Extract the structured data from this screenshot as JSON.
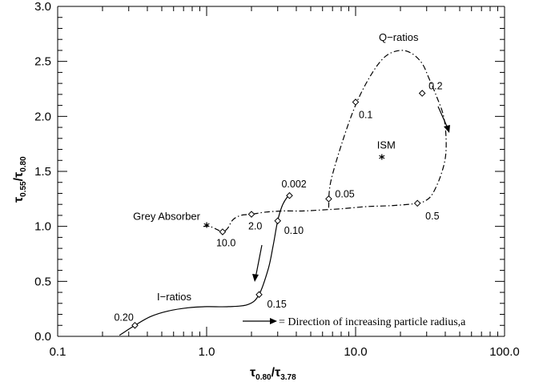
{
  "chart_data": {
    "type": "line",
    "x_scale": "log",
    "xlim": [
      0.1,
      100.0
    ],
    "ylim": [
      0.0,
      3.0
    ],
    "xticks": [
      "0.1",
      "1.0",
      "10.0",
      "100.0"
    ],
    "yticks": [
      "0.0",
      "0.5",
      "1.0",
      "1.5",
      "2.0",
      "2.5",
      "3.0"
    ],
    "xlabel": {
      "tau": "τ",
      "num": "0.80",
      "den": "3.78"
    },
    "ylabel": {
      "tau": "τ",
      "num": "0.55",
      "den": "0.80"
    },
    "series": [
      {
        "name": "I-ratios",
        "style": "solid",
        "x": [
          0.26,
          0.33,
          0.42,
          0.55,
          0.75,
          1.0,
          1.4,
          1.9,
          2.25,
          2.6,
          2.8,
          3.0,
          3.2,
          3.45,
          3.6
        ],
        "y": [
          0.01,
          0.1,
          0.18,
          0.23,
          0.26,
          0.27,
          0.27,
          0.29,
          0.38,
          0.62,
          0.83,
          1.05,
          1.18,
          1.26,
          1.28
        ],
        "markers": [
          {
            "x": 0.33,
            "y": 0.1,
            "label": "0.20"
          },
          {
            "x": 2.25,
            "y": 0.38,
            "label": "0.15"
          },
          {
            "x": 3.0,
            "y": 1.05,
            "label": "0.10"
          },
          {
            "x": 3.6,
            "y": 1.28,
            "label": "0.002"
          }
        ]
      },
      {
        "name": "Q-ratios",
        "style": "dash-dot",
        "x": [
          0.95,
          1.05,
          1.18,
          1.28,
          1.38,
          1.5,
          1.7,
          2.0,
          2.5,
          3.3,
          4.5,
          6.0,
          8.0,
          12.0,
          18.0,
          26.0,
          30.0,
          33.0,
          37.0,
          40.0,
          40.5,
          39.0,
          35.0,
          31.0,
          28.0,
          24.0,
          20.0,
          16.0,
          13.0,
          10.2,
          8.2,
          6.8,
          6.6
        ],
        "y": [
          1.0,
          1.0,
          0.97,
          0.95,
          0.98,
          1.06,
          1.1,
          1.11,
          1.13,
          1.14,
          1.14,
          1.15,
          1.16,
          1.18,
          1.19,
          1.21,
          1.24,
          1.3,
          1.45,
          1.62,
          1.8,
          2.0,
          2.18,
          2.35,
          2.48,
          2.57,
          2.6,
          2.55,
          2.4,
          2.13,
          1.78,
          1.4,
          1.17
        ],
        "markers": [
          {
            "x": 1.28,
            "y": 0.95,
            "label": "10.0"
          },
          {
            "x": 2.0,
            "y": 1.11,
            "label": "2.0"
          },
          {
            "x": 6.6,
            "y": 1.25,
            "label": "0.05"
          },
          {
            "x": 26.0,
            "y": 1.21,
            "label": "0.5"
          },
          {
            "x": 28.0,
            "y": 2.21,
            "label": "0.2"
          },
          {
            "x": 10.0,
            "y": 2.13,
            "label": "0.1"
          }
        ]
      }
    ],
    "points": [
      {
        "label": "Grey Absorber",
        "x": 1.0,
        "y": 1.0
      },
      {
        "label": "ISM",
        "x": 15.0,
        "y": 1.62
      }
    ],
    "annotations": {
      "i_ratios": "I−ratios",
      "q_ratios": "Q−ratios",
      "legend": "= Direction of increasing particle radius,a"
    }
  }
}
